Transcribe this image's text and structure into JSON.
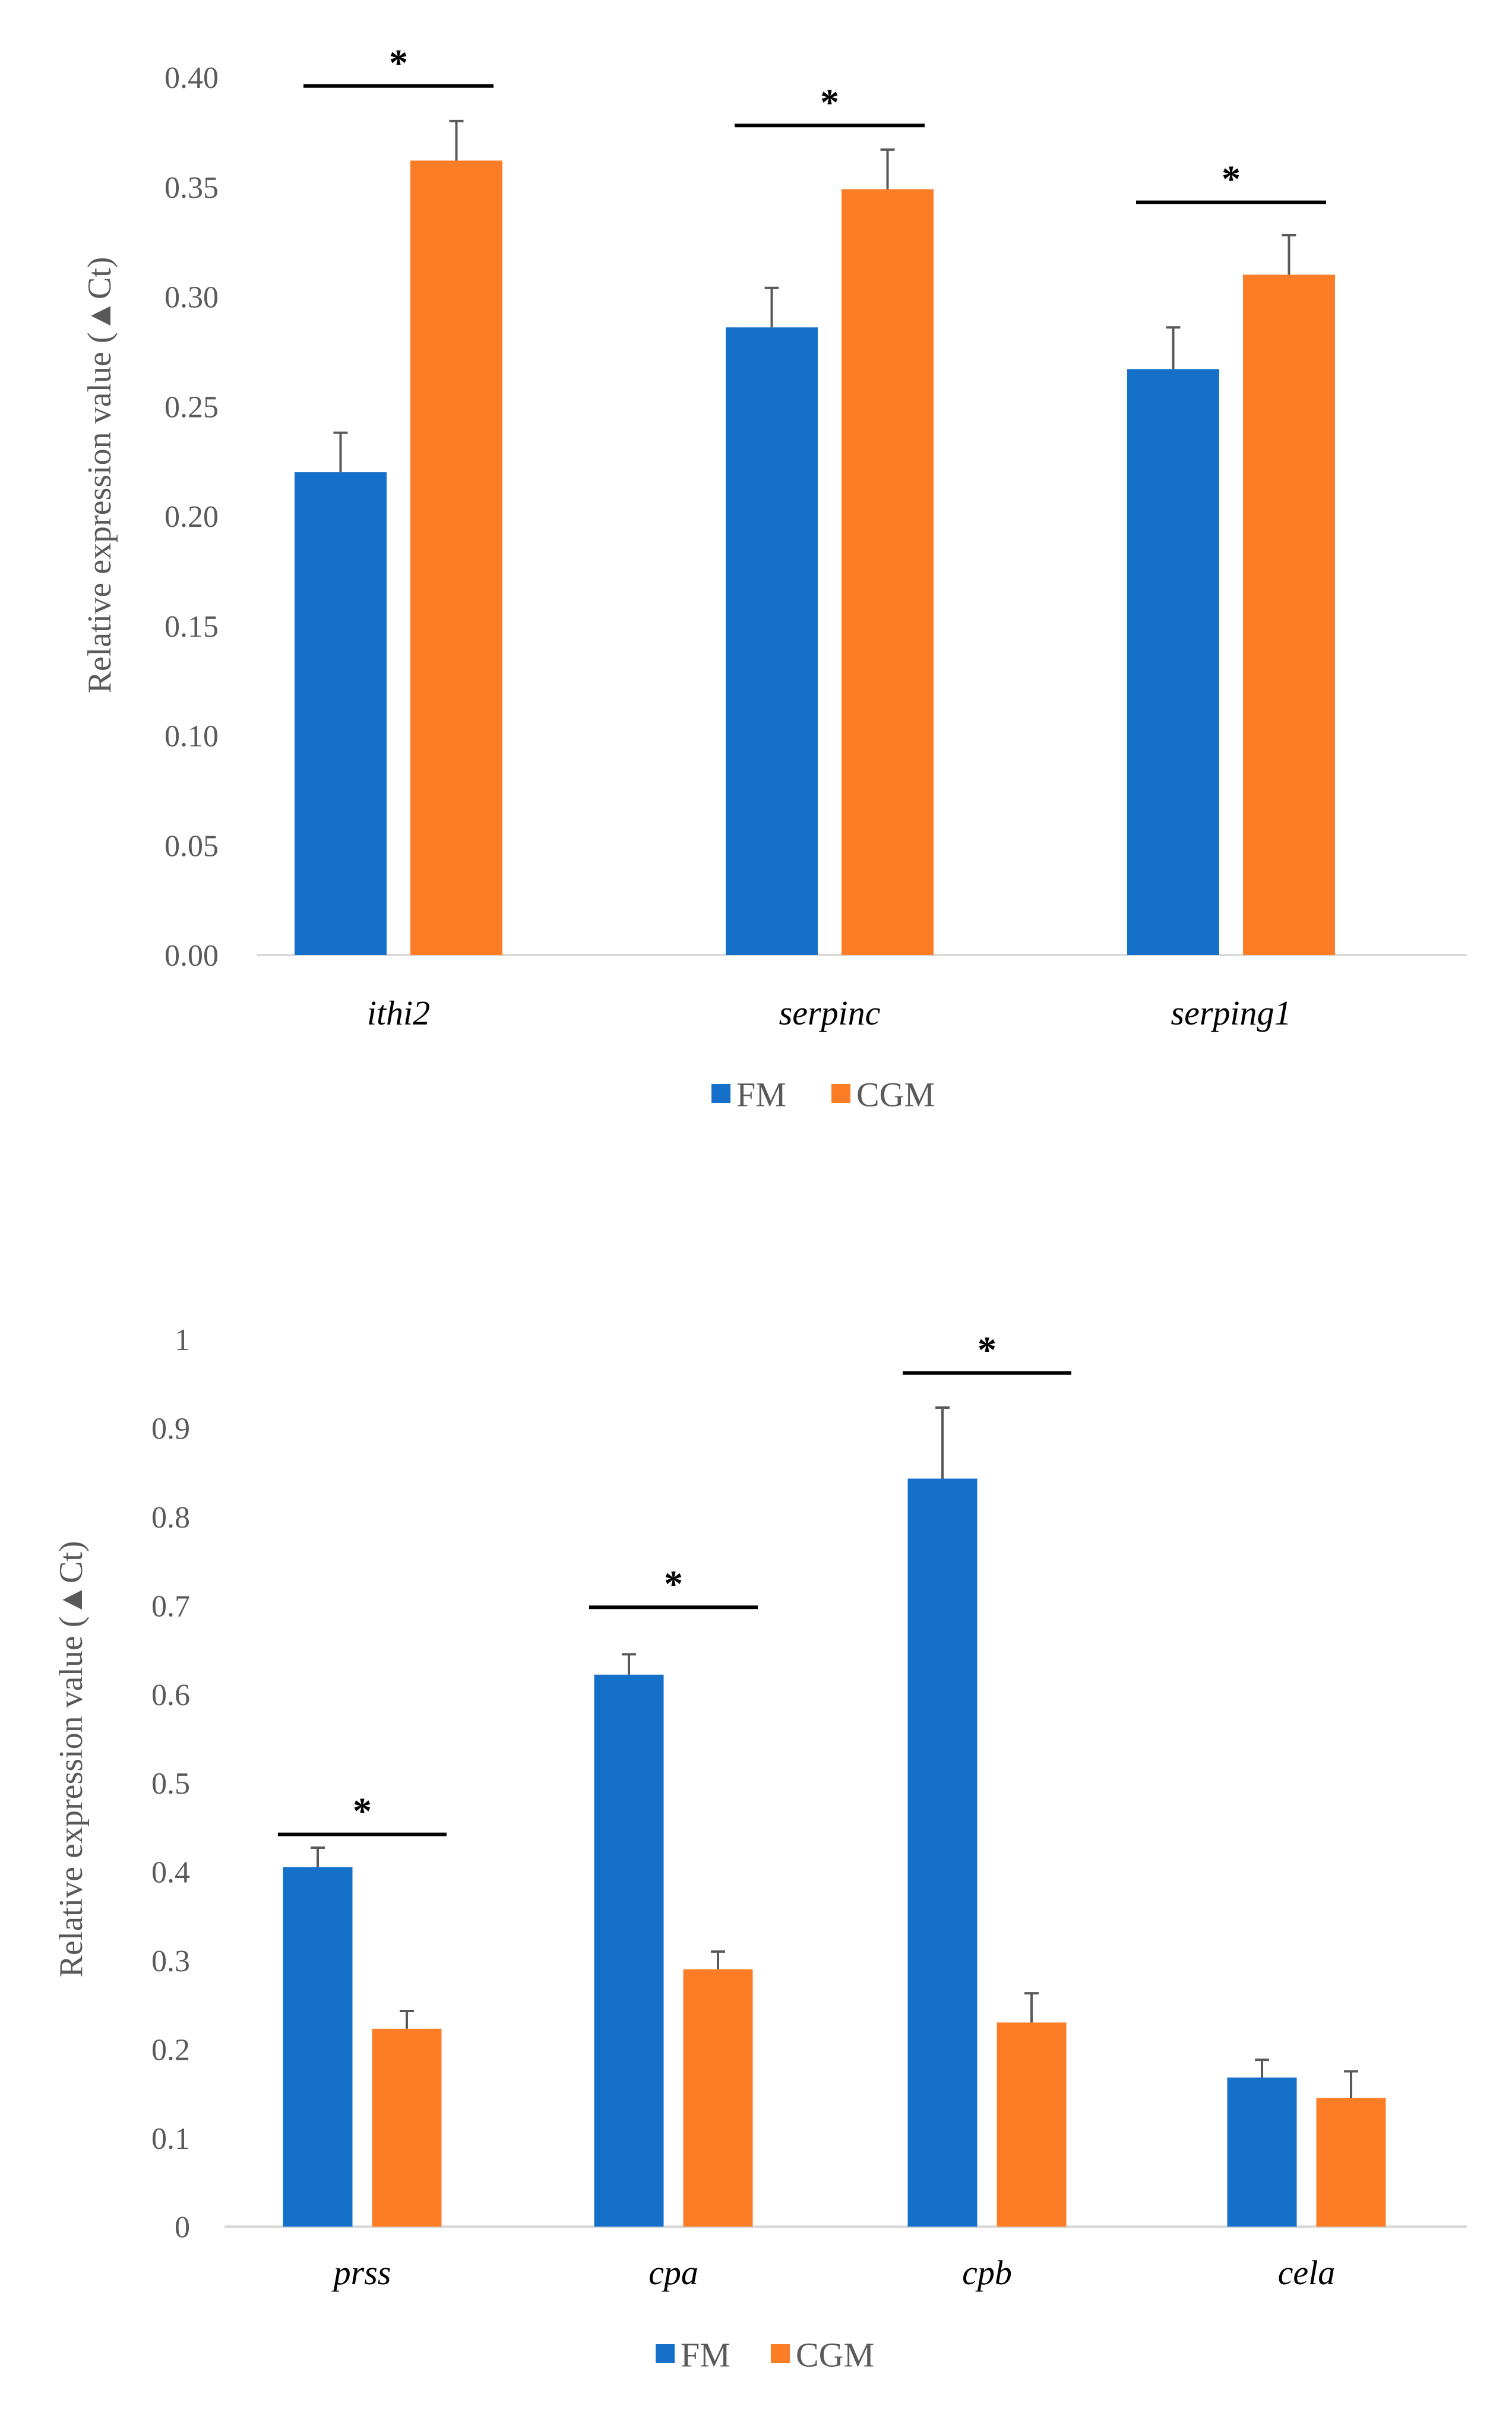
{
  "colors": {
    "fm": "#1470C8",
    "cgm": "#FC7D26",
    "axis": "#D9D9D9",
    "text": "#595959",
    "sig": "#000000",
    "err": "#595959"
  },
  "chart_data": [
    {
      "type": "bar",
      "title": "",
      "xlabel": "",
      "ylabel": "Relative expression value (▲Ct)",
      "ylim": [
        0,
        0.4
      ],
      "ytick_labels": [
        "0.00",
        "0.05",
        "0.10",
        "0.15",
        "0.20",
        "0.25",
        "0.30",
        "0.35",
        "0.40"
      ],
      "categories": [
        "ithi2",
        "serpinc",
        "serping1"
      ],
      "series": [
        {
          "name": "FM",
          "values": [
            0.22,
            0.286,
            0.267
          ],
          "errors": [
            0.018,
            0.018,
            0.019
          ]
        },
        {
          "name": "CGM",
          "values": [
            0.362,
            0.349,
            0.31
          ],
          "errors": [
            0.018,
            0.018,
            0.018
          ]
        }
      ],
      "significance": [
        {
          "category": "ithi2",
          "label": "*",
          "line_y": 0.396
        },
        {
          "category": "serpinc",
          "label": "*",
          "line_y": 0.378
        },
        {
          "category": "serping1",
          "label": "*",
          "line_y": 0.343
        }
      ],
      "legend": {
        "position": "bottom",
        "entries": [
          "FM",
          "CGM"
        ]
      }
    },
    {
      "type": "bar",
      "title": "",
      "xlabel": "",
      "ylabel": "Relative expression value (▲Ct)",
      "ylim": [
        0,
        1
      ],
      "ytick_labels": [
        "0",
        "0.1",
        "0.2",
        "0.3",
        "0.4",
        "0.5",
        "0.6",
        "0.7",
        "0.8",
        "0.9",
        "1"
      ],
      "categories": [
        "prss",
        "cpa",
        "cpb",
        "cela"
      ],
      "series": [
        {
          "name": "FM",
          "values": [
            0.405,
            0.622,
            0.843,
            0.168
          ],
          "errors": [
            0.022,
            0.023,
            0.08,
            0.02
          ]
        },
        {
          "name": "CGM",
          "values": [
            0.223,
            0.29,
            0.23,
            0.145
          ],
          "errors": [
            0.02,
            0.02,
            0.033,
            0.03
          ]
        }
      ],
      "significance": [
        {
          "category": "prss",
          "label": "*",
          "line_y": 0.442
        },
        {
          "category": "cpa",
          "label": "*",
          "line_y": 0.698
        },
        {
          "category": "cpb",
          "label": "*",
          "line_y": 0.962
        }
      ],
      "legend": {
        "position": "bottom",
        "entries": [
          "FM",
          "CGM"
        ]
      }
    }
  ]
}
